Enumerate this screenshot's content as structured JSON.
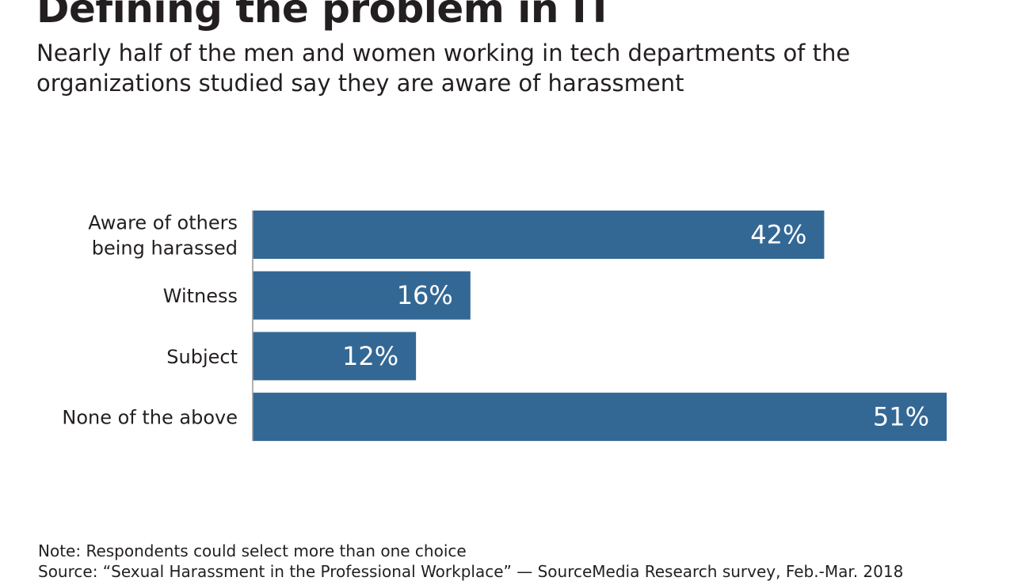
{
  "chart_data": {
    "type": "bar",
    "orientation": "horizontal",
    "title": "Defining the problem in IT",
    "subtitle": "Nearly half of the men and women working in tech departments of the organizations studied say they are aware of harassment",
    "categories": [
      [
        "Aware of others",
        "being harassed"
      ],
      [
        "Witness"
      ],
      [
        "Subject"
      ],
      [
        "None of the above"
      ]
    ],
    "values": [
      42,
      16,
      12,
      51
    ],
    "data_labels": [
      "42%",
      "16%",
      "12%",
      "51%"
    ],
    "xlim": [
      0,
      51
    ],
    "grid": false,
    "bar_color": "#336895",
    "label_color": "#ffffff"
  },
  "footer": {
    "note": "Note:  Respondents could select more than one choice",
    "source": "Source: “Sexual Harassment in the Professional Workplace” — SourceMedia Research survey, Feb.-Mar. 2018"
  }
}
